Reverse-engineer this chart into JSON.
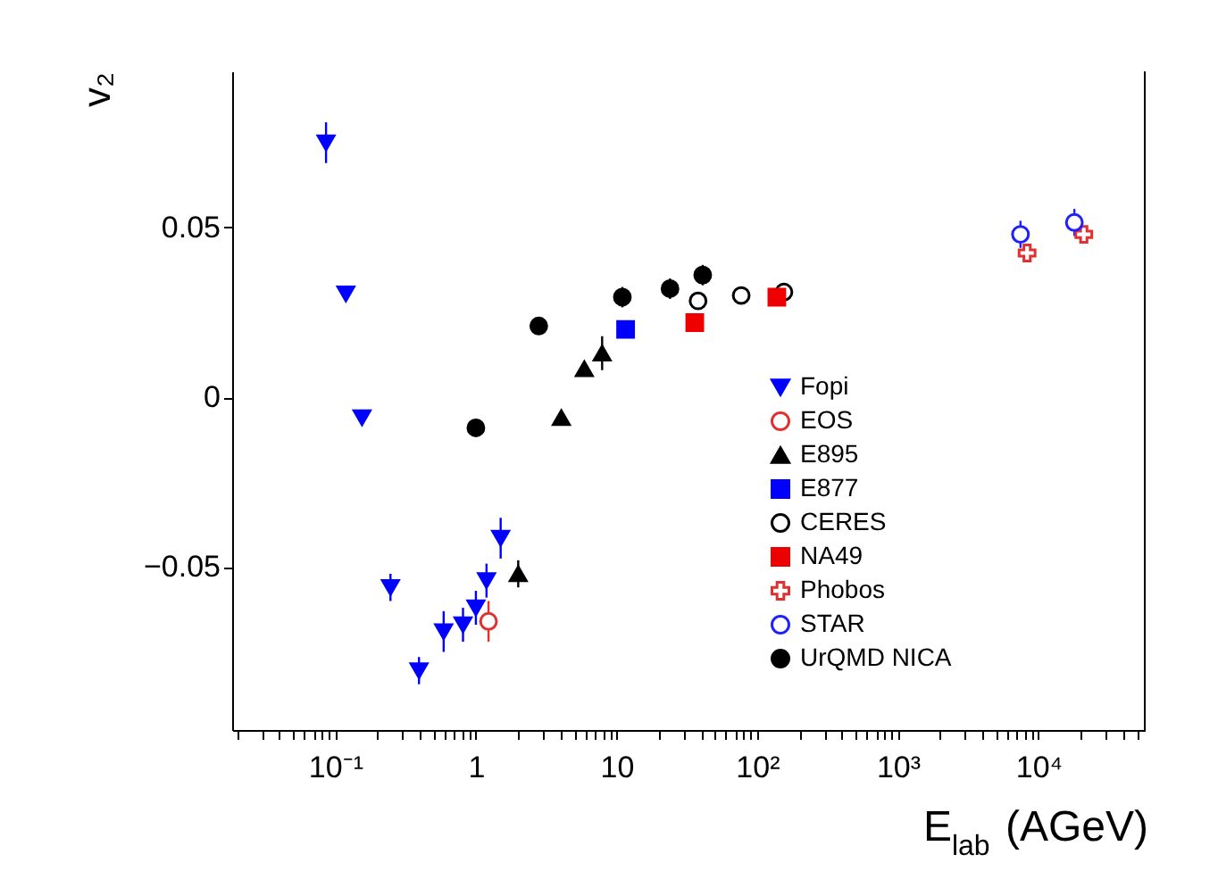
{
  "chart_data": {
    "type": "scatter",
    "xlabel": "E$_{lab}$ (AGeV)",
    "ylabel": "v₂",
    "log": "x",
    "grid": false,
    "legend": "right",
    "xlim": [
      0.0185,
      57000
    ],
    "ylim": [
      -0.098,
      0.096
    ],
    "xticks": [
      {
        "value": 0.02,
        "label": null
      },
      {
        "value": 0.03,
        "label": null
      },
      {
        "value": 0.04,
        "label": null
      },
      {
        "value": 0.05,
        "label": null
      },
      {
        "value": 0.06,
        "label": null
      },
      {
        "value": 0.07,
        "label": null
      },
      {
        "value": 0.08,
        "label": null
      },
      {
        "value": 0.09,
        "label": null
      },
      {
        "value": 0.1,
        "label": "10⁻¹"
      },
      {
        "value": 0.2,
        "label": null
      },
      {
        "value": 0.3,
        "label": null
      },
      {
        "value": 0.4,
        "label": null
      },
      {
        "value": 0.5,
        "label": null
      },
      {
        "value": 0.6,
        "label": null
      },
      {
        "value": 0.7,
        "label": null
      },
      {
        "value": 0.8,
        "label": null
      },
      {
        "value": 0.9,
        "label": null
      },
      1,
      {
        "value": 2,
        "label": null
      },
      {
        "value": 3,
        "label": null
      },
      {
        "value": 4,
        "label": null
      },
      {
        "value": 5,
        "label": null
      },
      {
        "value": 6,
        "label": null
      },
      {
        "value": 7,
        "label": null
      },
      {
        "value": 8,
        "label": null
      },
      {
        "value": 9,
        "label": null
      },
      10,
      {
        "value": 20,
        "label": null
      },
      {
        "value": 30,
        "label": null
      },
      {
        "value": 40,
        "label": null
      },
      {
        "value": 50,
        "label": null
      },
      {
        "value": 60,
        "label": null
      },
      {
        "value": 70,
        "label": null
      },
      {
        "value": 80,
        "label": null
      },
      {
        "value": 90,
        "label": null
      },
      {
        "value": 100,
        "label": "10²"
      },
      {
        "value": 200,
        "label": null
      },
      {
        "value": 300,
        "label": null
      },
      {
        "value": 400,
        "label": null
      },
      {
        "value": 500,
        "label": null
      },
      {
        "value": 600,
        "label": null
      },
      {
        "value": 700,
        "label": null
      },
      {
        "value": 800,
        "label": null
      },
      {
        "value": 900,
        "label": null
      },
      {
        "value": 1000,
        "label": "10³"
      },
      {
        "value": 2000,
        "label": null
      },
      {
        "value": 3000,
        "label": null
      },
      {
        "value": 4000,
        "label": null
      },
      {
        "value": 5000,
        "label": null
      },
      {
        "value": 6000,
        "label": null
      },
      {
        "value": 7000,
        "label": null
      },
      {
        "value": 8000,
        "label": null
      },
      {
        "value": 9000,
        "label": null
      },
      {
        "value": 10000,
        "label": "10⁴"
      },
      {
        "value": 20000,
        "label": null
      },
      {
        "value": 30000,
        "label": null
      },
      {
        "value": 40000,
        "label": null
      },
      {
        "value": 50000,
        "label": null
      }
    ],
    "yticks": [
      {
        "value": -0.05,
        "label": "−0.05"
      },
      0,
      0.05
    ],
    "series": [
      {
        "name": "Fopi",
        "color": "#0000ff",
        "marker": "triangle-down",
        "x": [
          0.086,
          0.119,
          0.155,
          0.247,
          0.394,
          0.59,
          0.81,
          1.0,
          1.19,
          1.5
        ],
        "values": [
          0.075,
          0.0305,
          -0.006,
          -0.056,
          -0.0805,
          -0.069,
          -0.067,
          -0.062,
          -0.054,
          -0.0415
        ],
        "errors": [
          0.006,
          null,
          null,
          0.004,
          0.004,
          0.006,
          0.005,
          0.005,
          0.005,
          0.006
        ]
      },
      {
        "name": "EOS",
        "color": "#e03030",
        "marker": "circle-open",
        "x": [
          1.23
        ],
        "values": [
          -0.066
        ],
        "errors": [
          0.006
        ]
      },
      {
        "name": "E895",
        "color": "#000000",
        "marker": "triangle",
        "x": [
          2.0,
          4.05,
          5.9,
          7.9
        ],
        "values": [
          -0.052,
          -0.006,
          0.0084,
          0.013
        ],
        "errors": [
          0.004,
          null,
          null,
          0.005
        ]
      },
      {
        "name": "E877",
        "color": "#0000ff",
        "marker": "square",
        "x": [
          11.6
        ],
        "values": [
          0.02
        ]
      },
      {
        "name": "CERES",
        "color": "#000000",
        "marker": "circle-open",
        "x": [
          38,
          77,
          155
        ],
        "values": [
          0.0284,
          0.03,
          0.031
        ]
      },
      {
        "name": "NA49",
        "color": "#ee0000",
        "marker": "square",
        "x": [
          36,
          138
        ],
        "values": [
          0.022,
          0.0295
        ]
      },
      {
        "name": "Phobos",
        "color": "#e03030",
        "marker": "cross-open",
        "x": [
          8300,
          21000
        ],
        "values": [
          0.0425,
          0.048
        ]
      },
      {
        "name": "STAR",
        "color": "#2020ff",
        "marker": "circle-open",
        "x": [
          7450,
          18000
        ],
        "values": [
          0.048,
          0.0515
        ],
        "errors": [
          0.004,
          0.004
        ]
      },
      {
        "name": "UrQMD NICA",
        "color": "#000000",
        "marker": "circle",
        "x": [
          1.0,
          2.8,
          11,
          24,
          41
        ],
        "values": [
          -0.009,
          0.021,
          0.0295,
          0.032,
          0.036
        ],
        "errors": [
          0.002,
          0.0025,
          0.003,
          0.003,
          0.003
        ]
      }
    ]
  }
}
